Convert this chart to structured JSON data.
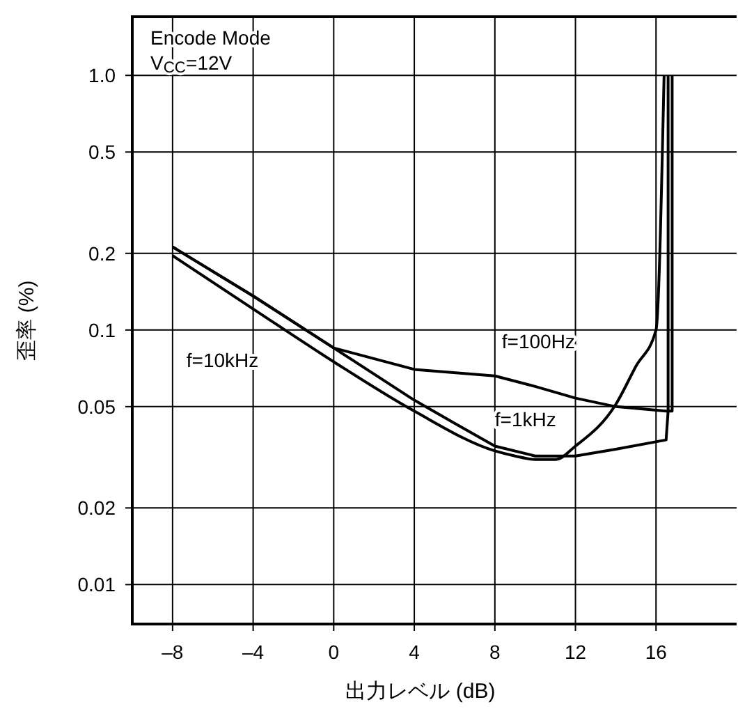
{
  "chart_data": {
    "type": "line",
    "xlabel": "出力レベル (dB)",
    "ylabel": "歪率 (%)",
    "log": "y",
    "grid": true,
    "marker": "none",
    "line_style": "solid",
    "xlim": [
      -10,
      20
    ],
    "xticks": [
      {
        "value": -8,
        "label": "–8"
      },
      {
        "value": -4,
        "label": "–4"
      },
      0,
      4,
      8,
      12,
      16
    ],
    "ylim": [
      0.007,
      1.7
    ],
    "yticks": [
      0.01,
      0.02,
      0.05,
      0.1,
      0.2,
      0.5,
      {
        "value": 1,
        "label": "1.0"
      }
    ],
    "annotations": [
      "Encode Mode",
      "V$_{CC}$=12V"
    ],
    "series": [
      {
        "name": "f=10kHz",
        "color": "#000000",
        "x": [
          -8,
          -4,
          0,
          4,
          8,
          9,
          10,
          11,
          12,
          14,
          15,
          16,
          16.4
        ],
        "values": [
          0.196,
          0.121,
          0.075,
          0.048,
          0.0335,
          0.032,
          0.031,
          0.031,
          0.035,
          0.051,
          0.072,
          0.1,
          1.0
        ]
      },
      {
        "name": "f=1kHz",
        "color": "#000000",
        "x": [
          -8,
          -4,
          0,
          4,
          6,
          8,
          10,
          12,
          14,
          16.5,
          16.6,
          16.6
        ],
        "values": [
          0.212,
          0.136,
          0.085,
          0.053,
          0.043,
          0.035,
          0.032,
          0.032,
          0.034,
          0.037,
          0.048,
          1.0
        ]
      },
      {
        "name": "f=100Hz",
        "color": "#000000",
        "x": [
          -8,
          -4,
          0,
          4,
          8,
          10,
          12,
          14,
          16.5,
          16.8,
          16.8
        ],
        "values": [
          0.212,
          0.136,
          0.085,
          0.07,
          0.066,
          0.06,
          0.054,
          0.05,
          0.048,
          0.048,
          1.0
        ]
      }
    ]
  }
}
